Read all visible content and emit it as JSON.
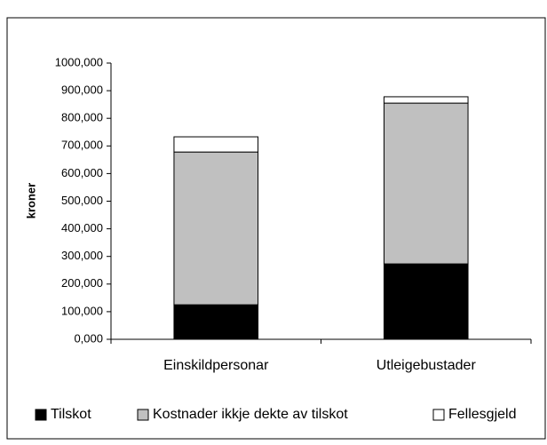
{
  "chart_data": {
    "type": "bar",
    "stacked": true,
    "y_label": "kroner",
    "categories": [
      "Einskildpersonar",
      "Utleigebustader"
    ],
    "series": [
      {
        "name": "Tilskot",
        "color": "#000000",
        "values": [
          125000,
          273000
        ]
      },
      {
        "name": "Kostnader ikkje dekte av tilskot",
        "color": "#c0c0c0",
        "values": [
          553000,
          582000
        ]
      },
      {
        "name": "Fellesgjeld",
        "color": "#ffffff",
        "values": [
          55000,
          23000
        ]
      }
    ],
    "ylim": [
      0,
      1000000
    ],
    "yticks": [
      {
        "value": 0,
        "label": "0,000"
      },
      {
        "value": 100000,
        "label": "100,000"
      },
      {
        "value": 200000,
        "label": "200,000"
      },
      {
        "value": 300000,
        "label": "300,000"
      },
      {
        "value": 400000,
        "label": "400,000"
      },
      {
        "value": 500000,
        "label": "500,000"
      },
      {
        "value": 600000,
        "label": "600,000"
      },
      {
        "value": 700000,
        "label": "700,000"
      },
      {
        "value": 800000,
        "label": "800,000"
      },
      {
        "value": 900000,
        "label": "900,000"
      },
      {
        "value": 1000000,
        "label": "1000,000"
      }
    ],
    "grid": false,
    "legend": "bottom"
  }
}
